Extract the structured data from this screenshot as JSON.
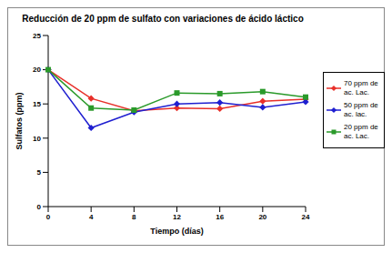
{
  "chart_data": {
    "type": "line",
    "title": "Reducción de 20 ppm de sulfato con variaciones de ácido láctico",
    "x_label": "Tiempo (días)",
    "y_label": "Sulfatos (ppm)",
    "categories": [
      "0",
      "4",
      "8",
      "12",
      "16",
      "20",
      "24"
    ],
    "series": [
      {
        "name": "70 ppm de ac. Lac.",
        "color": "#e8302a",
        "marker": "diamond",
        "values": [
          20,
          15.8,
          14.0,
          14.4,
          14.3,
          15.4,
          15.7
        ]
      },
      {
        "name": "50 ppm de ac. lac.",
        "color": "#1f1fd0",
        "marker": "diamond",
        "values": [
          20,
          11.5,
          13.8,
          15.0,
          15.2,
          14.5,
          15.3
        ]
      },
      {
        "name": "20 ppm de ac. Lac.",
        "color": "#2a9a2a",
        "marker": "square",
        "values": [
          20,
          14.4,
          14.1,
          16.6,
          16.5,
          16.8,
          16.0
        ]
      }
    ],
    "ylim": [
      0,
      25
    ],
    "yticks": [
      0,
      5,
      10,
      15,
      20,
      25
    ],
    "grid": false,
    "legend": "right"
  }
}
